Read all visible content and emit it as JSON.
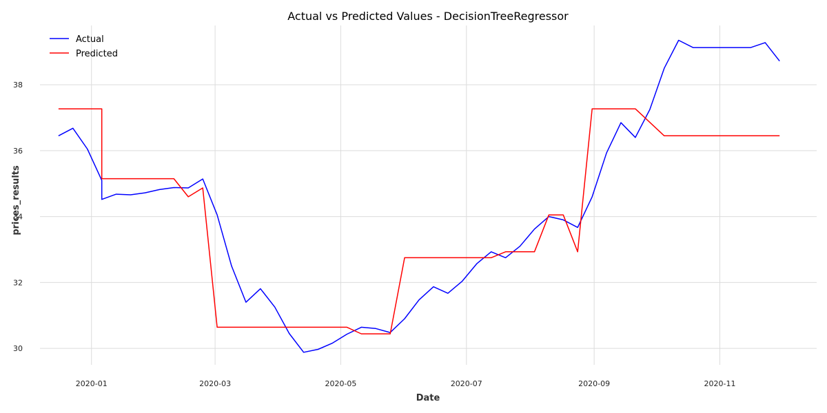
{
  "chart_data": {
    "type": "line",
    "title": "Actual vs Predicted Values - DecisionTreeRegressor",
    "xlabel": "Date",
    "ylabel": "prices_results",
    "xlim": [
      "2019-12-07",
      "2020-12-18"
    ],
    "ylim": [
      29.5,
      39.8
    ],
    "grid": true,
    "legend_position": "top-left",
    "x_ticks": [
      "2020-01-01",
      "2020-03-01",
      "2020-05-01",
      "2020-07-01",
      "2020-09-01",
      "2020-11-01"
    ],
    "x_tick_labels": [
      "2020-01",
      "2020-03",
      "2020-05",
      "2020-07",
      "2020-09",
      "2020-11"
    ],
    "y_ticks": [
      30,
      32,
      34,
      36,
      38
    ],
    "y_tick_labels": [
      "30",
      "32",
      "34",
      "36",
      "38"
    ],
    "series": [
      {
        "name": "Actual",
        "color": "#0000ff",
        "points": [
          [
            "2019-12-16",
            36.45
          ],
          [
            "2019-12-23",
            36.68
          ],
          [
            "2019-12-30",
            36.05
          ],
          [
            "2020-01-06",
            35.1
          ],
          [
            "2020-01-06",
            34.52
          ],
          [
            "2020-01-13",
            34.68
          ],
          [
            "2020-01-20",
            34.66
          ],
          [
            "2020-01-27",
            34.72
          ],
          [
            "2020-02-03",
            34.82
          ],
          [
            "2020-02-10",
            34.88
          ],
          [
            "2020-02-17",
            34.87
          ],
          [
            "2020-02-24",
            35.14
          ],
          [
            "2020-03-02",
            34.05
          ],
          [
            "2020-03-09",
            32.5
          ],
          [
            "2020-03-16",
            31.4
          ],
          [
            "2020-03-23",
            31.81
          ],
          [
            "2020-03-30",
            31.25
          ],
          [
            "2020-04-06",
            30.45
          ],
          [
            "2020-04-13",
            29.88
          ],
          [
            "2020-04-20",
            29.97
          ],
          [
            "2020-04-27",
            30.16
          ],
          [
            "2020-05-04",
            30.43
          ],
          [
            "2020-05-11",
            30.64
          ],
          [
            "2020-05-18",
            30.6
          ],
          [
            "2020-05-25",
            30.48
          ],
          [
            "2020-06-01",
            30.9
          ],
          [
            "2020-06-08",
            31.47
          ],
          [
            "2020-06-15",
            31.87
          ],
          [
            "2020-06-22",
            31.67
          ],
          [
            "2020-06-29",
            32.04
          ],
          [
            "2020-07-06",
            32.57
          ],
          [
            "2020-07-13",
            32.93
          ],
          [
            "2020-07-20",
            32.75
          ],
          [
            "2020-07-27",
            33.1
          ],
          [
            "2020-08-03",
            33.62
          ],
          [
            "2020-08-10",
            34.0
          ],
          [
            "2020-08-17",
            33.9
          ],
          [
            "2020-08-24",
            33.67
          ],
          [
            "2020-08-31",
            34.6
          ],
          [
            "2020-09-07",
            35.93
          ],
          [
            "2020-09-14",
            36.85
          ],
          [
            "2020-09-21",
            36.4
          ],
          [
            "2020-09-28",
            37.25
          ],
          [
            "2020-10-05",
            38.5
          ],
          [
            "2020-10-12",
            39.35
          ],
          [
            "2020-10-19",
            39.13
          ],
          [
            "2020-10-26",
            39.13
          ],
          [
            "2020-11-02",
            39.13
          ],
          [
            "2020-11-09",
            39.13
          ],
          [
            "2020-11-16",
            39.13
          ],
          [
            "2020-11-23",
            39.28
          ],
          [
            "2020-11-30",
            38.72
          ]
        ]
      },
      {
        "name": "Predicted",
        "color": "#ff0000",
        "points": [
          [
            "2019-12-16",
            37.27
          ],
          [
            "2020-01-06",
            37.27
          ],
          [
            "2020-01-06",
            35.15
          ],
          [
            "2020-02-10",
            35.15
          ],
          [
            "2020-02-17",
            34.6
          ],
          [
            "2020-02-24",
            34.87
          ],
          [
            "2020-03-02",
            30.64
          ],
          [
            "2020-05-04",
            30.64
          ],
          [
            "2020-05-11",
            30.44
          ],
          [
            "2020-05-25",
            30.44
          ],
          [
            "2020-06-01",
            32.75
          ],
          [
            "2020-07-13",
            32.75
          ],
          [
            "2020-07-20",
            32.93
          ],
          [
            "2020-08-03",
            32.93
          ],
          [
            "2020-08-10",
            34.05
          ],
          [
            "2020-08-17",
            34.05
          ],
          [
            "2020-08-24",
            32.93
          ],
          [
            "2020-08-31",
            37.27
          ],
          [
            "2020-09-21",
            37.27
          ],
          [
            "2020-10-05",
            36.45
          ],
          [
            "2020-11-30",
            36.45
          ]
        ]
      }
    ]
  }
}
